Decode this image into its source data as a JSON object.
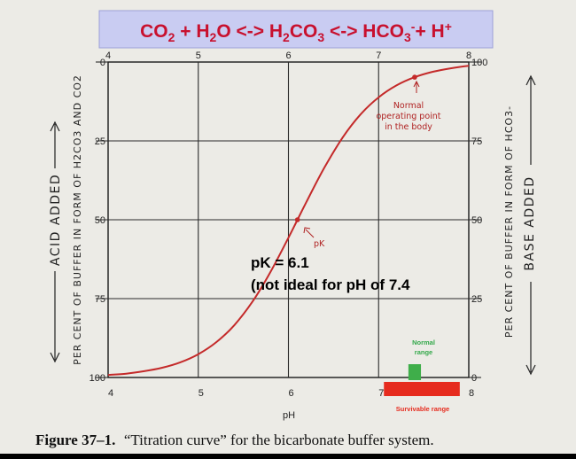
{
  "title": "CO2 + H2O <-> H2CO3 <-> HCO3-+ H+",
  "chart_data": {
    "type": "line",
    "xlabel": "pH",
    "x_ticks": [
      "4",
      "5",
      "6",
      "7",
      "8"
    ],
    "xlim": [
      4,
      8
    ],
    "left_ticks": [
      "0",
      "25",
      "50",
      "75",
      "100"
    ],
    "right_ticks": [
      "100",
      "75",
      "50",
      "25",
      "0"
    ],
    "ylim": [
      0,
      100
    ],
    "left_axis_label": "PER CENT OF BUFFER IN FORM OF H2CO3 AND CO2",
    "left_axis_arrow_label": "ACID ADDED",
    "right_axis_label": "PER CENT OF BUFFER IN FORM OF HCO3-",
    "right_axis_arrow_label": "BASE ADDED",
    "series": [
      {
        "color": "#c42a2a",
        "x": [
          4.0,
          4.2,
          4.4,
          4.6,
          4.8,
          5.0,
          5.2,
          5.4,
          5.6,
          5.8,
          6.0,
          6.1,
          6.2,
          6.4,
          6.6,
          6.8,
          7.0,
          7.2,
          7.4,
          7.6,
          7.8,
          8.0
        ],
        "y": [
          0.8,
          1.2,
          2.0,
          3.1,
          4.8,
          7.4,
          11.2,
          16.6,
          24.0,
          33.4,
          44.3,
          50.0,
          55.7,
          66.6,
          76.0,
          83.4,
          88.8,
          92.6,
          95.2,
          96.9,
          98.0,
          98.8
        ]
      }
    ],
    "points": [
      {
        "x": 6.1,
        "y": 50.0
      },
      {
        "x": 7.4,
        "y": 95.2
      }
    ],
    "annotations": {
      "normal_operating_point": "Normal operating point in the body",
      "pk_marker": "pK",
      "pk_value": "pK = 6.1",
      "pk_note": "(not ideal for pH of 7.4",
      "normal_range": "Normal range",
      "survivable_range": "Survivable range"
    },
    "ranges": {
      "normal": [
        7.35,
        7.45
      ],
      "survivable": [
        7.0,
        7.9
      ]
    },
    "colors": {
      "curve": "#c42a2a",
      "normal_range": "#3fae4a",
      "survivable_range": "#e62b1e"
    }
  },
  "caption": {
    "label": "Figure 37–1.",
    "text": "“Titration curve” for the bicarbonate buffer system."
  }
}
